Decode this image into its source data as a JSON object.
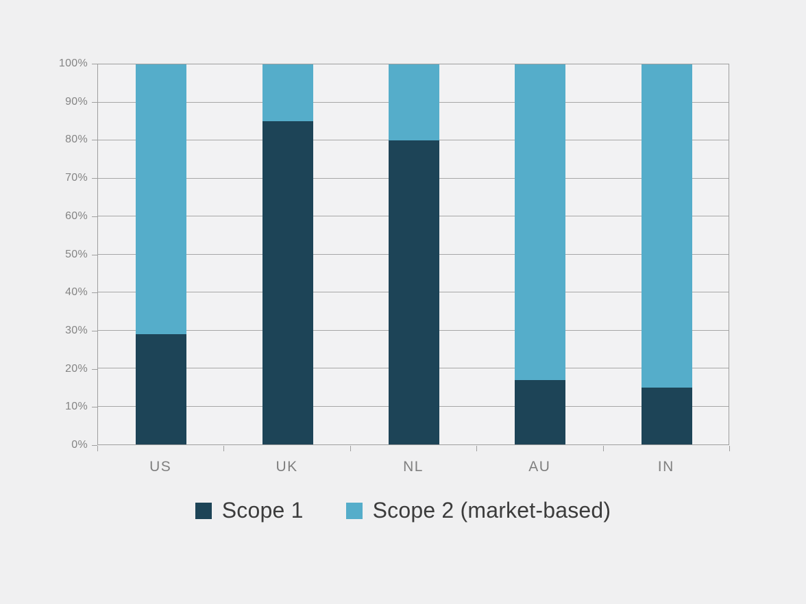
{
  "chart_data": {
    "type": "bar",
    "stacked": true,
    "orientation": "vertical",
    "title": "",
    "xlabel": "",
    "ylabel": "",
    "categories": [
      "US",
      "UK",
      "NL",
      "AU",
      "IN"
    ],
    "series": [
      {
        "name": "Scope 1",
        "color": "#1d4457",
        "values": [
          29,
          85,
          80,
          17,
          15
        ]
      },
      {
        "name": "Scope 2 (market-based)",
        "color": "#55adca",
        "values": [
          71,
          15,
          20,
          83,
          85
        ]
      }
    ],
    "ylim": [
      0,
      100
    ],
    "y_tick_labels": [
      "0%",
      "10%",
      "20%",
      "30%",
      "40%",
      "50%",
      "60%",
      "70%",
      "80%",
      "90%",
      "100%"
    ],
    "grid": true,
    "legend_position": "bottom"
  },
  "legend": {
    "items": [
      {
        "label": "Scope 1",
        "color": "#1d4457"
      },
      {
        "label": "Scope 2 (market-based)",
        "color": "#55adca"
      }
    ]
  },
  "colors": {
    "page_background": "#f0f0f1",
    "plot_background": "#f2f2f3",
    "gridline": "#a6a6a6",
    "axis_border": "#9e9e9e",
    "axis_label": "#848484",
    "legend_text": "#3c3c3c"
  }
}
